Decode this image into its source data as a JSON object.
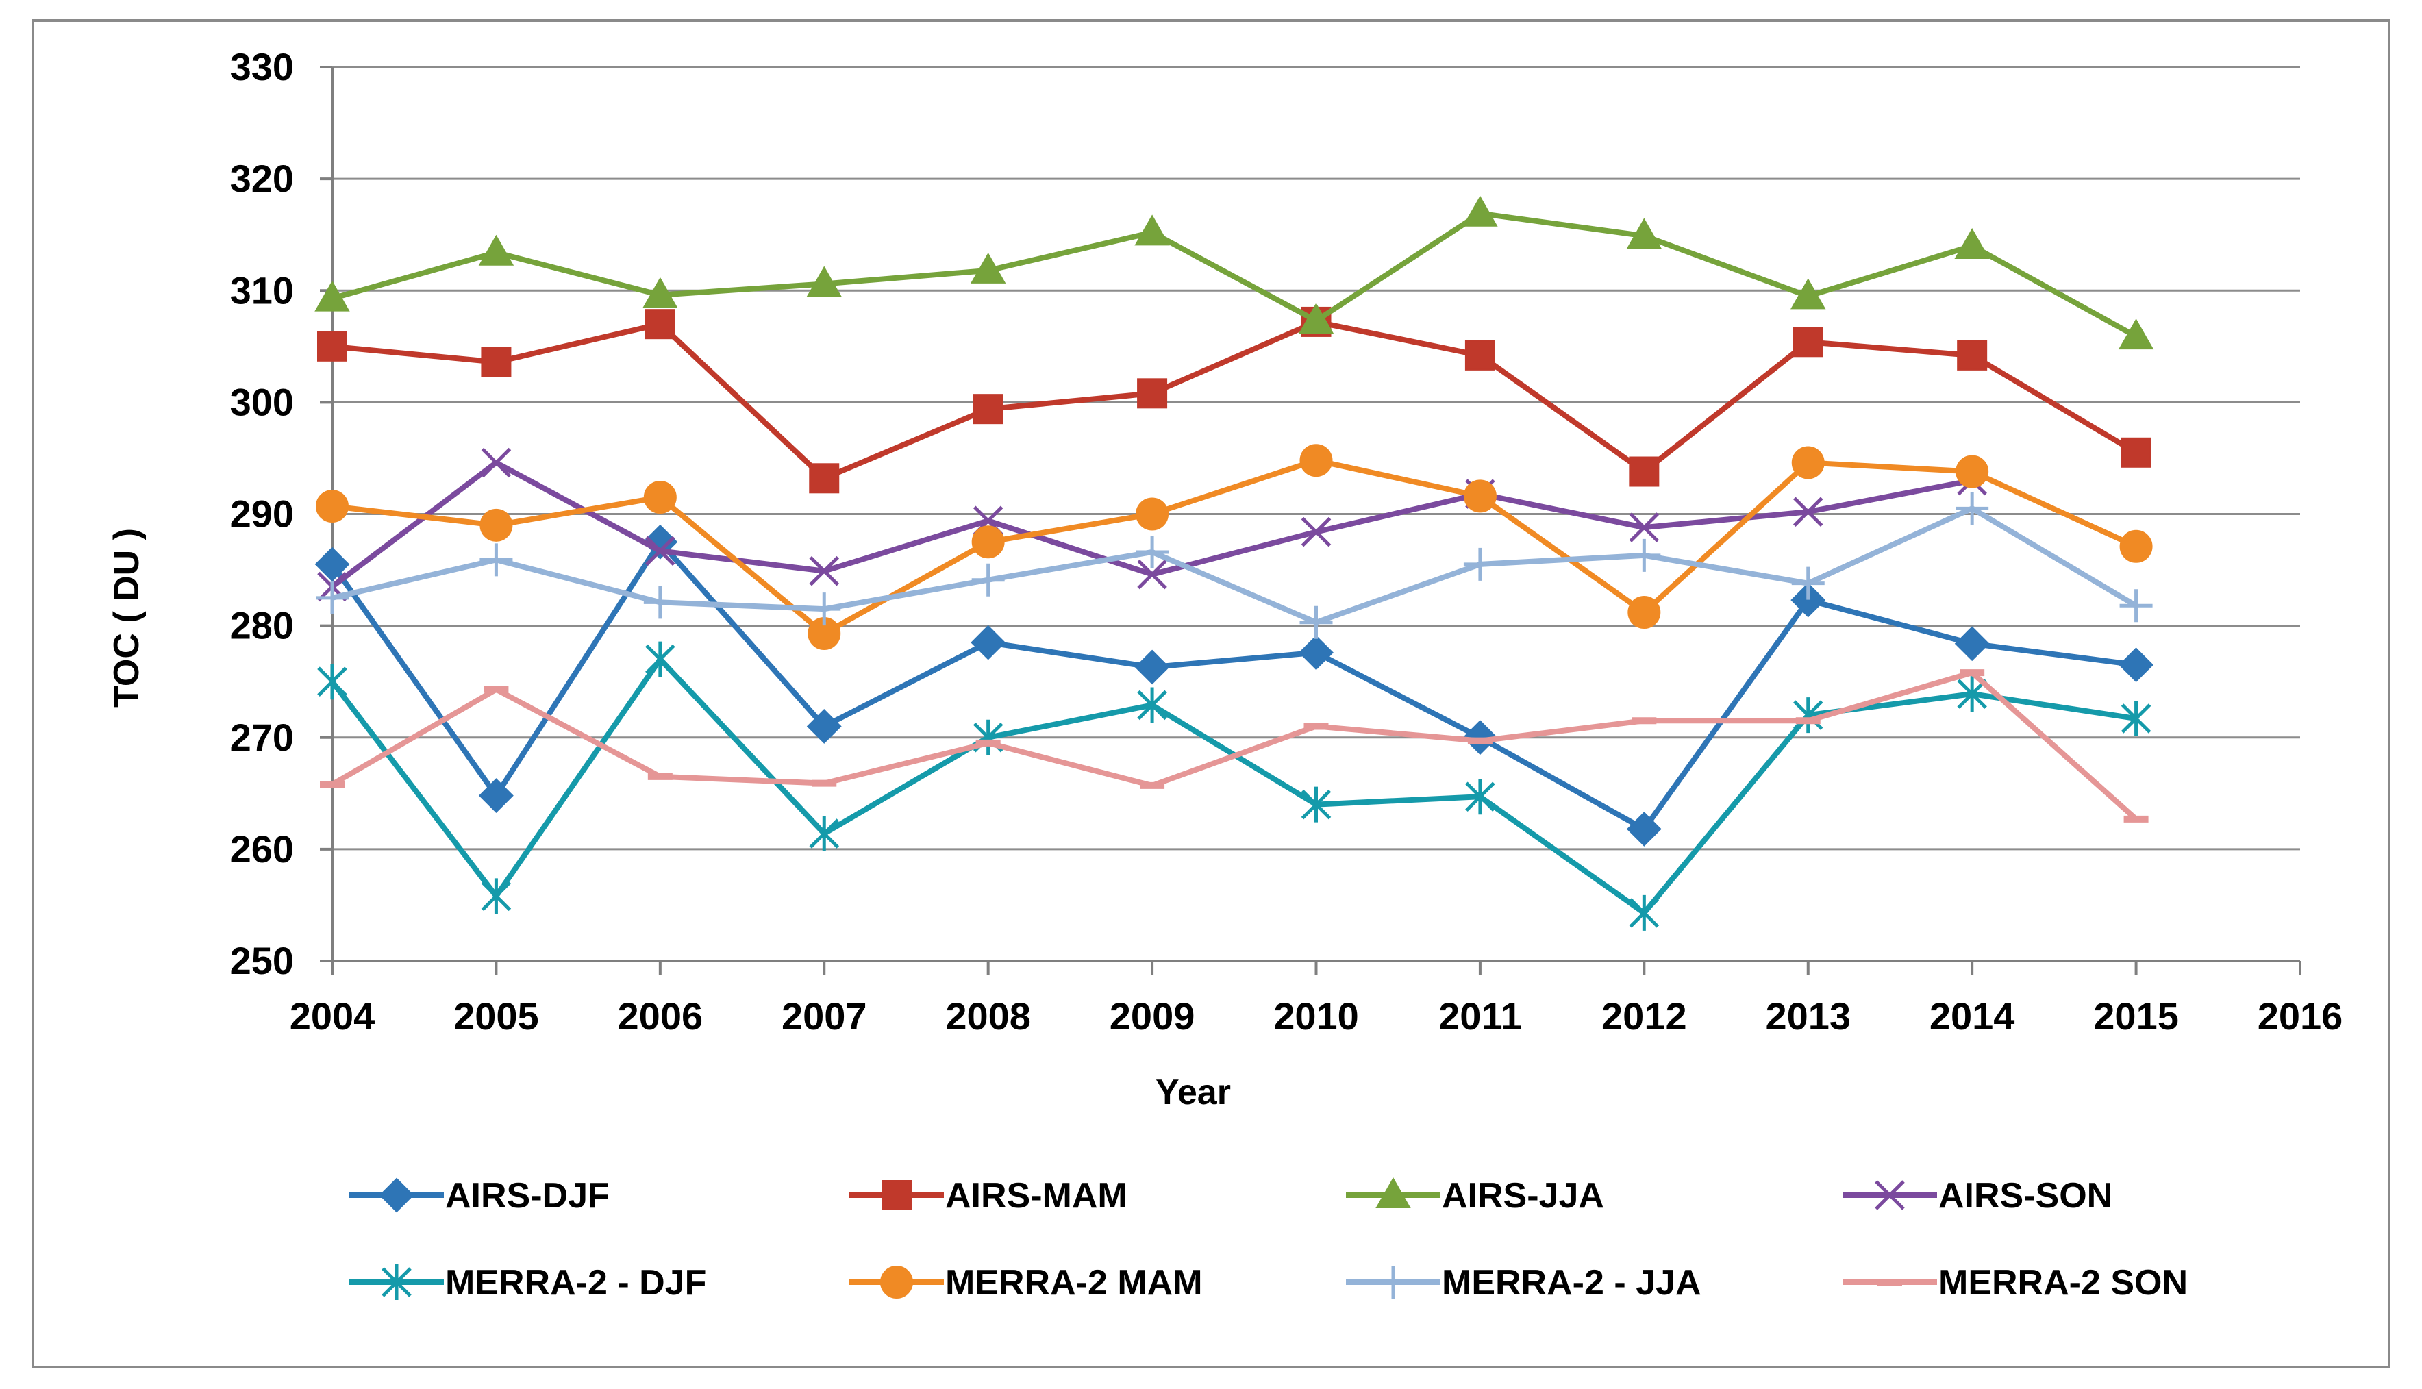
{
  "chart_data": {
    "type": "line",
    "title": "",
    "xlabel": "Year",
    "ylabel": "TOC ( DU )",
    "xlim": [
      2004,
      2016
    ],
    "ylim": [
      250,
      330
    ],
    "xticks": [
      2004,
      2005,
      2006,
      2007,
      2008,
      2009,
      2010,
      2011,
      2012,
      2013,
      2014,
      2015,
      2016
    ],
    "yticks": [
      250,
      260,
      270,
      280,
      290,
      300,
      310,
      320,
      330
    ],
    "grid": "horizontal",
    "legend_position": "bottom",
    "x": [
      2004,
      2005,
      2006,
      2007,
      2008,
      2009,
      2010,
      2011,
      2012,
      2013,
      2014,
      2015
    ],
    "series": [
      {
        "name": "AIRS-DJF",
        "color": "#2E75B6",
        "marker": "diamond",
        "values": [
          285.5,
          264.8,
          287.5,
          271.0,
          278.5,
          276.3,
          277.6,
          270.0,
          261.8,
          282.3,
          278.4,
          276.5
        ]
      },
      {
        "name": "AIRS-MAM",
        "color": "#C0392B",
        "marker": "square",
        "values": [
          305.0,
          303.6,
          307.0,
          293.2,
          299.4,
          300.8,
          307.2,
          304.2,
          293.8,
          305.4,
          304.2,
          295.5
        ]
      },
      {
        "name": "AIRS-JJA",
        "color": "#76A33B",
        "marker": "triangle",
        "values": [
          309.3,
          313.4,
          309.6,
          310.6,
          311.8,
          315.2,
          307.3,
          316.9,
          314.9,
          309.5,
          314.0,
          305.9
        ]
      },
      {
        "name": "AIRS-SON",
        "color": "#7B4A9E",
        "marker": "x",
        "values": [
          283.5,
          294.6,
          286.7,
          284.9,
          289.4,
          284.6,
          288.4,
          291.8,
          288.8,
          290.2,
          293.0,
          null
        ]
      },
      {
        "name": "MERRA-2 - DJF",
        "color": "#159AAA",
        "marker": "asterisk",
        "values": [
          275.0,
          255.8,
          277.0,
          261.4,
          270.0,
          272.9,
          264.0,
          264.7,
          254.3,
          272.0,
          273.9,
          271.7
        ]
      },
      {
        "name": "MERRA-2 MAM",
        "color": "#F08A24",
        "marker": "circle",
        "values": [
          290.7,
          289.0,
          291.5,
          279.3,
          287.5,
          290.0,
          294.8,
          291.6,
          281.2,
          294.6,
          293.8,
          287.1
        ]
      },
      {
        "name": "MERRA-2 - JJA",
        "color": "#94B3D8",
        "marker": "plus",
        "values": [
          282.5,
          285.9,
          282.1,
          281.5,
          284.1,
          286.6,
          280.3,
          285.5,
          286.3,
          283.8,
          290.5,
          281.8
        ]
      },
      {
        "name": "MERRA-2 SON",
        "color": "#E59696",
        "marker": "dash",
        "values": [
          265.8,
          274.3,
          266.5,
          265.9,
          269.5,
          265.7,
          271.0,
          269.7,
          271.5,
          271.5,
          275.8,
          262.7
        ]
      }
    ]
  }
}
